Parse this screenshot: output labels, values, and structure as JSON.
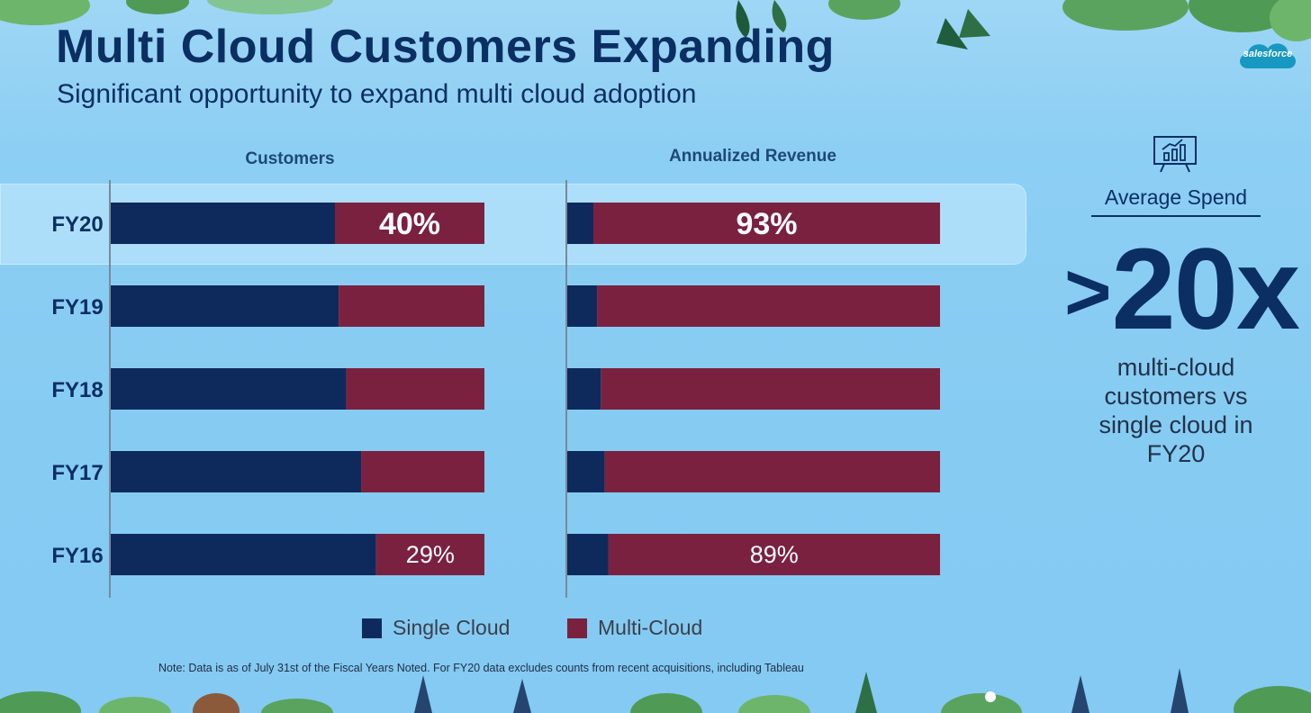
{
  "title": "Multi Cloud Customers Expanding",
  "subtitle": "Significant opportunity to expand multi cloud adoption",
  "brand": "salesforce",
  "colors": {
    "single_cloud": "#0e2a5c",
    "multi_cloud": "#7b2140",
    "title": "#0b2f63",
    "background": "#86cbf2"
  },
  "chart_data": [
    {
      "type": "bar",
      "stacked": true,
      "orientation": "horizontal",
      "title": "Customers",
      "categories": [
        "FY20",
        "FY19",
        "FY18",
        "FY17",
        "FY16"
      ],
      "series": [
        {
          "name": "Single Cloud",
          "values": [
            60,
            61,
            63,
            67,
            71
          ]
        },
        {
          "name": "Multi-Cloud",
          "values": [
            40,
            39,
            37,
            33,
            29
          ]
        }
      ],
      "data_labels": {
        "FY20": "40%",
        "FY16": "29%"
      },
      "xlim": [
        0,
        100
      ],
      "highlight": "FY20"
    },
    {
      "type": "bar",
      "stacked": true,
      "orientation": "horizontal",
      "title": "Annualized Revenue",
      "categories": [
        "FY20",
        "FY19",
        "FY18",
        "FY17",
        "FY16"
      ],
      "series": [
        {
          "name": "Single Cloud",
          "values": [
            7,
            8,
            9,
            10,
            11
          ]
        },
        {
          "name": "Multi-Cloud",
          "values": [
            93,
            92,
            91,
            90,
            89
          ]
        }
      ],
      "data_labels": {
        "FY20": "93%",
        "FY16": "89%"
      },
      "xlim": [
        0,
        100
      ],
      "highlight": "FY20"
    }
  ],
  "legend": {
    "single": "Single Cloud",
    "multi": "Multi-Cloud"
  },
  "note": "Note: Data is as of July 31st of the Fiscal Years Noted. For FY20 data excludes counts from recent acquisitions, including Tableau",
  "sidebar": {
    "icon": "presentation-chart-icon",
    "label": "Average Spend",
    "prefix": ">",
    "value": "20x",
    "caption": "multi-cloud customers vs single cloud in FY20"
  }
}
